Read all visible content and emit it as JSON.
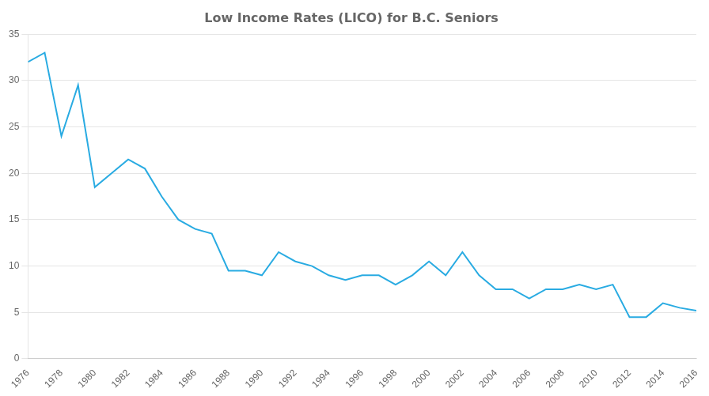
{
  "chart_data": {
    "type": "line",
    "title": "Low Income Rates (LICO) for B.C. Seniors",
    "x": [
      1976,
      1977,
      1978,
      1979,
      1980,
      1981,
      1982,
      1983,
      1984,
      1985,
      1986,
      1987,
      1988,
      1989,
      1990,
      1991,
      1992,
      1993,
      1994,
      1995,
      1996,
      1997,
      1998,
      1999,
      2000,
      2001,
      2002,
      2003,
      2004,
      2005,
      2006,
      2007,
      2008,
      2009,
      2010,
      2011,
      2012,
      2013,
      2014,
      2015,
      2016
    ],
    "values": [
      32,
      33,
      24,
      29.5,
      18.5,
      20,
      21.5,
      20.5,
      17.5,
      15,
      14,
      13.5,
      9.5,
      9.5,
      9,
      11.5,
      10.5,
      10,
      9,
      8.5,
      9,
      9,
      8,
      9,
      10.5,
      9,
      11.5,
      9,
      7.5,
      7.5,
      6.5,
      7.5,
      7.5,
      8,
      7.5,
      8,
      4.5,
      4.5,
      6,
      5.5,
      5.2
    ],
    "color": "#29ABE2",
    "xlim": [
      1976,
      2016
    ],
    "xticks": [
      1976,
      1978,
      1980,
      1982,
      1984,
      1986,
      1988,
      1990,
      1992,
      1994,
      1996,
      1998,
      2000,
      2002,
      2004,
      2006,
      2008,
      2010,
      2012,
      2014,
      2016
    ],
    "ylim": [
      0,
      35
    ],
    "yticks": [
      0,
      5,
      10,
      15,
      20,
      25,
      30,
      35
    ],
    "grid": "y"
  }
}
